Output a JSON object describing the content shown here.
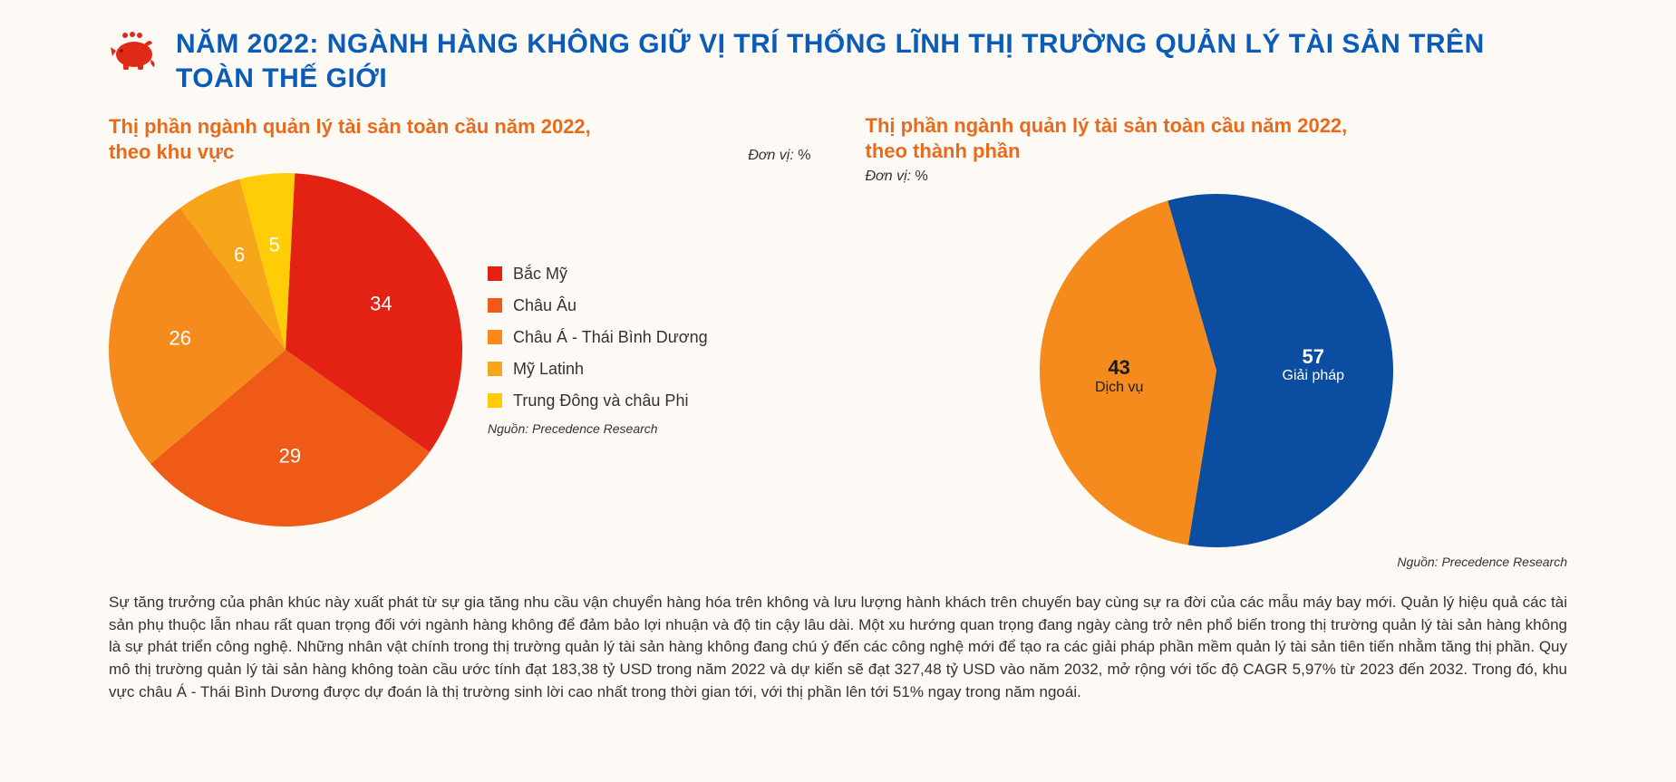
{
  "colors": {
    "title_blue": "#0a5cb8",
    "chart_title_orange": "#e86b1c",
    "piggy_red": "#e02a18",
    "text": "#333333",
    "background": "#fdfaf6"
  },
  "title": "NĂM 2022: NGÀNH HÀNG KHÔNG GIỮ VỊ TRÍ THỐNG LĨNH THỊ TRƯỜNG QUẢN LÝ TÀI SẢN TRÊN TOÀN THẾ GIỚI",
  "chart1": {
    "type": "pie",
    "title": "Thị phần ngành quản lý tài sản toàn cầu năm 2022, theo khu vực",
    "unit_prefix": "Đơn vị:",
    "unit": "%",
    "radius": 195,
    "start_angle_deg": 3,
    "font_size_label": 22,
    "slices": [
      {
        "label": "Bắc Mỹ",
        "value": 34,
        "color": "#e32213",
        "text_color": "#ffffff"
      },
      {
        "label": "Châu Âu",
        "value": 29,
        "color": "#ef5a17",
        "text_color": "#ffffff"
      },
      {
        "label": "Châu Á - Thái Bình Dương",
        "value": 26,
        "color": "#f68b1d",
        "text_color": "#ffffff"
      },
      {
        "label": "Mỹ Latinh",
        "value": 6,
        "color": "#f7a61a",
        "text_color": "#ffffff"
      },
      {
        "label": "Trung Đông và châu Phi",
        "value": 5,
        "color": "#fecd07",
        "text_color": "#ffffff"
      }
    ],
    "source_prefix": "Nguồn:",
    "source": "Precedence Research"
  },
  "chart2": {
    "type": "pie",
    "title": "Thị phần ngành quản lý tài sản toàn cầu năm 2022, theo thành phần",
    "unit_prefix": "Đơn vị:",
    "unit": "%",
    "radius": 195,
    "start_angle_deg": -16,
    "font_size_label": 22,
    "slices": [
      {
        "label": "Giải pháp",
        "value": 57,
        "color": "#0a4da1",
        "text_color": "#ffffff"
      },
      {
        "label": "Dịch vụ",
        "value": 43,
        "color": "#f68b1d",
        "text_color": "#1a1a1a"
      }
    ],
    "source_prefix": "Nguồn:",
    "source": "Precedence Research"
  },
  "body_text": "Sự tăng trưởng của phân khúc này xuất phát từ sự gia tăng nhu cầu vận chuyển hàng hóa trên không và lưu lượng hành khách trên chuyến bay cùng sự ra đời của các mẫu máy bay mới. Quản lý hiệu quả các tài sản phụ thuộc lẫn nhau rất quan trọng đối với ngành hàng không để đảm bảo lợi nhuận và độ tin cậy lâu dài. Một xu hướng quan trọng đang ngày càng trở nên phổ biến trong thị trường quản lý tài sản hàng không là sự phát triển công nghệ. Những nhân vật chính trong thị trường quản lý tài sản hàng không đang chú ý đến các công nghệ mới để tạo ra các giải pháp phần mềm quản lý tài sản tiên tiến nhằm tăng thị phần. Quy mô thị trường quản lý tài sản hàng không toàn cầu ước tính đạt 183,38 tỷ USD trong năm 2022 và dự kiến sẽ đạt 327,48 tỷ USD vào năm 2032, mở rộng với tốc độ CAGR 5,97% từ 2023 đến 2032. Trong đó, khu vực châu Á - Thái Bình Dương được dự đoán là thị trường sinh lời cao nhất trong thời gian tới, với thị phần lên tới 51% ngay trong năm ngoái."
}
